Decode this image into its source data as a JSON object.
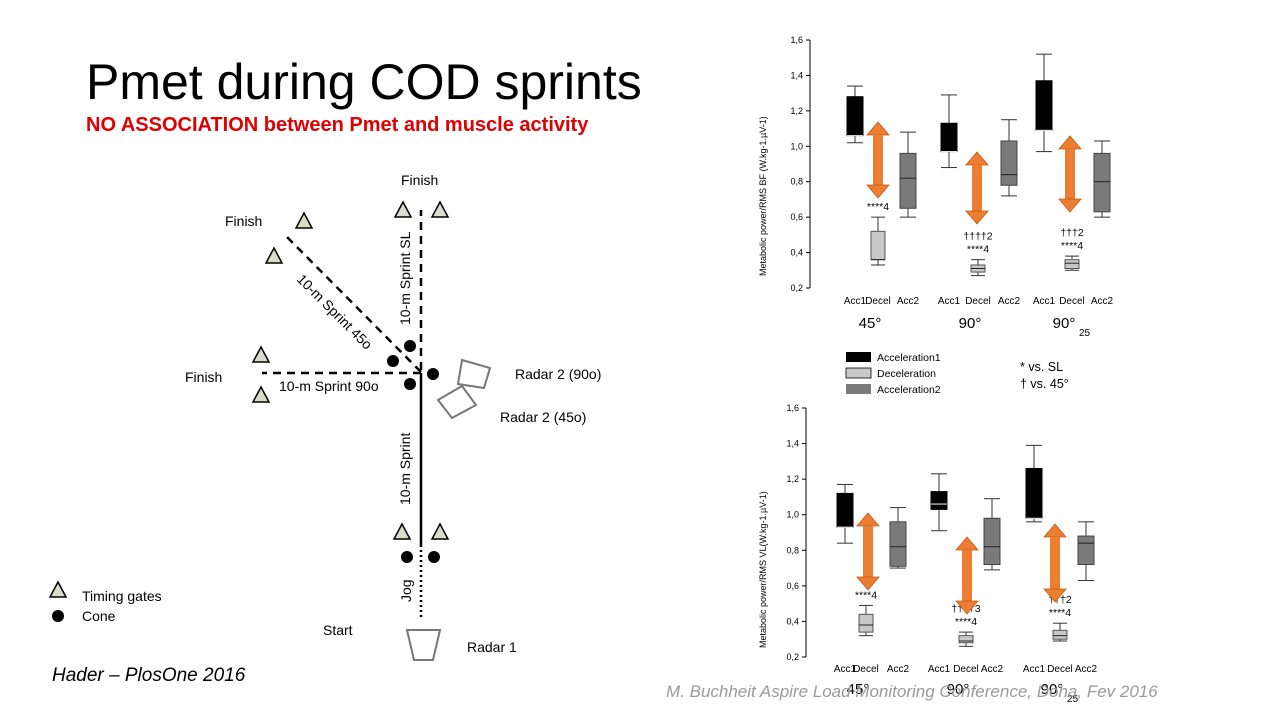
{
  "slide": {
    "title": "Pmet during COD sprints",
    "subtitle": "NO ASSOCIATION between Pmet and muscle activity",
    "citation": "Hader – PlosOne 2016",
    "footer": "M. Buchheit Aspire Load Monitoring Conference, Doha, Fev 2016"
  },
  "diagram": {
    "labels": {
      "finish_top": "Finish",
      "finish_diag": "Finish",
      "finish_left": "Finish",
      "start": "Start",
      "sprint_sl": "10-m Sprint SL",
      "sprint_45": "10-m Sprint 45o",
      "sprint_90": "10-m Sprint 90o",
      "sprint_main": "10-m Sprint",
      "jog": "Jog",
      "radar_90": "Radar 2 (90o)",
      "radar_45": "Radar 2 (45o)",
      "radar_1": "Radar 1"
    },
    "legend": {
      "timing_gates": "Timing gates",
      "cone": "Cone"
    }
  },
  "shared_legend": {
    "acc1": "Acceleration1",
    "decel": "Deceleration",
    "acc2": "Acceleration2",
    "sl_note": "* vs. SL",
    "deg45_note": "† vs. 45°"
  },
  "chart_data": [
    {
      "type": "box",
      "ylabel": "Metabolic power/RMS BF (W.kg-1.µV-1)",
      "ylim": [
        0.2,
        1.6
      ],
      "yticks": [
        "0,2",
        "0,4",
        "0,6",
        "0,8",
        "1,0",
        "1,2",
        "1,4",
        "1,6"
      ],
      "groups": [
        {
          "name": "45°",
          "sub": "",
          "categories": [
            "Acc1",
            "Decel",
            "Acc2"
          ],
          "boxes": [
            {
              "phase": "Acc1",
              "min": 1.02,
              "q1": 1.06,
              "median": 1.06,
              "q3": 1.28,
              "max": 1.34
            },
            {
              "phase": "Decel",
              "min": 0.33,
              "q1": 0.36,
              "median": 0.36,
              "q3": 0.52,
              "max": 0.6
            },
            {
              "phase": "Acc2",
              "min": 0.6,
              "q1": 0.65,
              "median": 0.82,
              "q3": 0.96,
              "max": 1.08
            }
          ],
          "annotations": [
            "****4"
          ]
        },
        {
          "name": "90°",
          "sub": "",
          "categories": [
            "Acc1",
            "Decel",
            "Acc2"
          ],
          "boxes": [
            {
              "phase": "Acc1",
              "min": 0.88,
              "q1": 0.97,
              "median": 0.97,
              "q3": 1.13,
              "max": 1.29
            },
            {
              "phase": "Decel",
              "min": 0.27,
              "q1": 0.29,
              "median": 0.31,
              "q3": 0.33,
              "max": 0.36
            },
            {
              "phase": "Acc2",
              "min": 0.72,
              "q1": 0.78,
              "median": 0.84,
              "q3": 1.03,
              "max": 1.15
            }
          ],
          "annotations": [
            "††††2",
            "****4"
          ]
        },
        {
          "name": "90°",
          "sub": "25",
          "categories": [
            "Acc1",
            "Decel",
            "Acc2"
          ],
          "boxes": [
            {
              "phase": "Acc1",
              "min": 0.97,
              "q1": 1.09,
              "median": 1.09,
              "q3": 1.37,
              "max": 1.52
            },
            {
              "phase": "Decel",
              "min": 0.3,
              "q1": 0.31,
              "median": 0.34,
              "q3": 0.36,
              "max": 0.38
            },
            {
              "phase": "Acc2",
              "min": 0.6,
              "q1": 0.63,
              "median": 0.8,
              "q3": 0.96,
              "max": 1.03
            }
          ],
          "annotations": [
            "†††2",
            "****4"
          ]
        }
      ]
    },
    {
      "type": "box",
      "ylabel": "Metabolic power/RMS VL(W.kg-1.µV-1)",
      "ylim": [
        0.2,
        1.6
      ],
      "yticks": [
        "0,2",
        "0,4",
        "0,6",
        "0,8",
        "1,0",
        "1,2",
        "1,4",
        "1,6"
      ],
      "groups": [
        {
          "name": "45°",
          "sub": "",
          "categories": [
            "Acc1",
            "Decel",
            "Acc2"
          ],
          "boxes": [
            {
              "phase": "Acc1",
              "min": 0.84,
              "q1": 0.93,
              "median": 0.93,
              "q3": 1.12,
              "max": 1.17
            },
            {
              "phase": "Decel",
              "min": 0.32,
              "q1": 0.34,
              "median": 0.38,
              "q3": 0.44,
              "max": 0.49
            },
            {
              "phase": "Acc2",
              "min": 0.7,
              "q1": 0.71,
              "median": 0.82,
              "q3": 0.96,
              "max": 1.04
            }
          ],
          "annotations": [
            "****4"
          ]
        },
        {
          "name": "90°",
          "sub": "",
          "categories": [
            "Acc1",
            "Decel",
            "Acc2"
          ],
          "boxes": [
            {
              "phase": "Acc1",
              "min": 0.91,
              "q1": 1.03,
              "median": 1.06,
              "q3": 1.13,
              "max": 1.23
            },
            {
              "phase": "Decel",
              "min": 0.26,
              "q1": 0.28,
              "median": 0.29,
              "q3": 0.32,
              "max": 0.34
            },
            {
              "phase": "Acc2",
              "min": 0.69,
              "q1": 0.72,
              "median": 0.82,
              "q3": 0.98,
              "max": 1.09
            }
          ],
          "annotations": [
            "††††3",
            "****4"
          ]
        },
        {
          "name": "90°",
          "sub": "25",
          "categories": [
            "Acc1",
            "Decel",
            "Acc2"
          ],
          "boxes": [
            {
              "phase": "Acc1",
              "min": 0.96,
              "q1": 0.98,
              "median": 0.98,
              "q3": 1.26,
              "max": 1.39
            },
            {
              "phase": "Decel",
              "min": 0.29,
              "q1": 0.3,
              "median": 0.32,
              "q3": 0.35,
              "max": 0.39
            },
            {
              "phase": "Acc2",
              "min": 0.63,
              "q1": 0.72,
              "median": 0.84,
              "q3": 0.88,
              "max": 0.96
            }
          ],
          "annotations": [
            "†††2",
            "****4"
          ]
        }
      ]
    }
  ],
  "colors": {
    "acc1": "#000000",
    "decel": "#c8c8c8",
    "acc2": "#7a7a7a",
    "arrow": "#ed7d31",
    "title_red": "#e00000",
    "gate_fill": "#dcdccc"
  }
}
